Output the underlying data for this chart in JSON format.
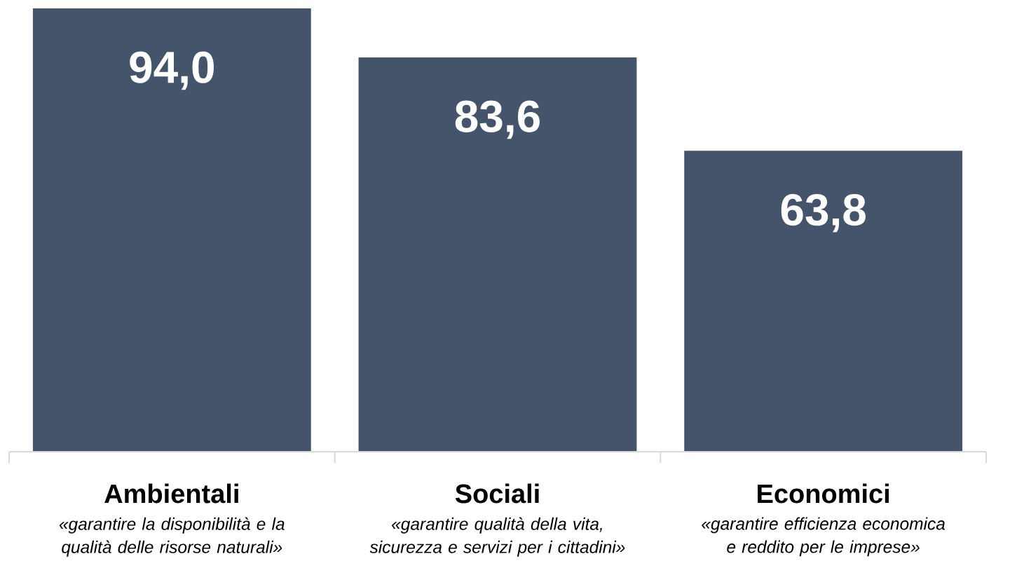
{
  "chart_data": {
    "type": "bar",
    "categories": [
      "Ambientali",
      "Sociali",
      "Economici"
    ],
    "values": [
      94.0,
      83.6,
      63.8
    ],
    "value_labels": [
      "94,0",
      "83,6",
      "63,8"
    ],
    "color": "#44546a",
    "annotations": [
      "«garantire la disponibilità e la qualità delle risorse naturali»",
      "«garantire qualità della vita, sicurezza e servizi per i cittadini»",
      "«garantire efficienza economica e reddito per le imprese»"
    ]
  }
}
